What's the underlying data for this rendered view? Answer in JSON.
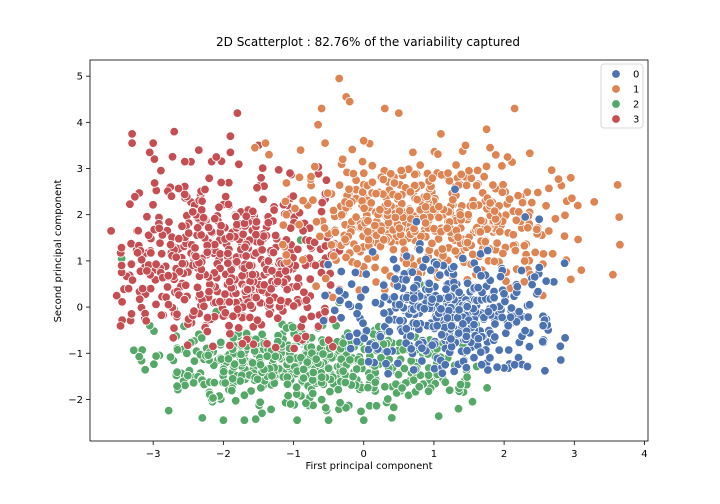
{
  "chart_data": {
    "type": "scatter",
    "title": "2D Scatterplot : 82.76% of the variability captured",
    "xlabel": "First principal component",
    "ylabel": "Second principal component",
    "xlim": [
      -3.9,
      4.05
    ],
    "ylim": [
      -2.9,
      5.35
    ],
    "xticks": [
      -3,
      -2,
      -1,
      0,
      1,
      2,
      3,
      4
    ],
    "yticks": [
      -2,
      -1,
      0,
      1,
      2,
      3,
      4,
      5
    ],
    "grid": false,
    "legend": {
      "position": "top-right"
    },
    "series": [
      {
        "name": "0",
        "color": "#4c72b0",
        "cluster": {
          "cx": 1.25,
          "cy": -0.15,
          "sx": 0.65,
          "sy": 0.6,
          "n": 420,
          "xmin": -0.6,
          "xmax": 2.9,
          "ymin": -1.5,
          "ymax": 2.5
        },
        "points": [
          [
            1.3,
            2.55
          ],
          [
            2.3,
            1.95
          ],
          [
            2.5,
            1.9
          ],
          [
            2.55,
            -0.75
          ],
          [
            2.8,
            -0.85
          ],
          [
            0.75,
            1.85
          ],
          [
            -0.35,
            0.35
          ],
          [
            -0.55,
            0.25
          ],
          [
            1.9,
            -1.3
          ],
          [
            2.15,
            -1.25
          ]
        ]
      },
      {
        "name": "1",
        "color": "#dd8452",
        "cluster": {
          "cx": 0.8,
          "cy": 1.9,
          "sx": 1.0,
          "sy": 0.7,
          "n": 520,
          "xmin": -1.2,
          "xmax": 3.7,
          "ymin": 0.2,
          "ymax": 3.6
        },
        "points": [
          [
            -0.35,
            4.95
          ],
          [
            -0.25,
            4.55
          ],
          [
            -0.2,
            4.45
          ],
          [
            0.3,
            4.3
          ],
          [
            0.5,
            4.2
          ],
          [
            -0.6,
            4.3
          ],
          [
            -0.65,
            3.95
          ],
          [
            -0.9,
            3.4
          ],
          [
            -0.55,
            3.55
          ],
          [
            -0.3,
            3.2
          ],
          [
            2.15,
            4.3
          ],
          [
            1.75,
            3.85
          ],
          [
            1.1,
            3.75
          ],
          [
            1.45,
            3.5
          ],
          [
            1.8,
            3.45
          ],
          [
            2.05,
            3.25
          ],
          [
            -1.4,
            3.55
          ],
          [
            -1.55,
            3.45
          ],
          [
            -1.35,
            3.3
          ],
          [
            3.65,
            1.35
          ],
          [
            3.55,
            0.7
          ],
          [
            3.1,
            0.8
          ],
          [
            2.95,
            0.6
          ],
          [
            2.55,
            0.25
          ],
          [
            0.0,
            3.6
          ],
          [
            0.7,
            3.35
          ],
          [
            1.5,
            2.95
          ],
          [
            1.2,
            2.9
          ],
          [
            3.05,
            2.2
          ],
          [
            2.95,
            2.8
          ]
        ]
      },
      {
        "name": "2",
        "color": "#55a868",
        "cluster": {
          "cx": -0.8,
          "cy": -1.3,
          "sx": 1.1,
          "sy": 0.45,
          "n": 520,
          "xmin": -3.3,
          "xmax": 1.8,
          "ymin": -2.45,
          "ymax": -0.35
        },
        "points": [
          [
            -3.45,
            1.05
          ],
          [
            -3.05,
            -0.4
          ],
          [
            -2.3,
            -2.4
          ],
          [
            -2.0,
            -2.45
          ],
          [
            -1.7,
            -2.45
          ],
          [
            -1.45,
            -2.3
          ],
          [
            -0.95,
            -2.45
          ],
          [
            -0.5,
            -2.45
          ],
          [
            0.0,
            -2.45
          ],
          [
            0.4,
            -2.4
          ],
          [
            1.35,
            -2.2
          ],
          [
            1.55,
            -2.05
          ],
          [
            0.8,
            0.5
          ],
          [
            -0.6,
            0.95
          ],
          [
            -0.9,
            1.45
          ],
          [
            -0.35,
            0.1
          ],
          [
            -2.1,
            -0.1
          ],
          [
            -2.7,
            -0.05
          ]
        ]
      },
      {
        "name": "3",
        "color": "#c44e52",
        "cluster": {
          "cx": -1.85,
          "cy": 1.0,
          "sx": 0.8,
          "sy": 0.95,
          "n": 560,
          "xmin": -3.55,
          "xmax": -0.3,
          "ymin": -0.9,
          "ymax": 3.4
        },
        "points": [
          [
            -3.3,
            3.75
          ],
          [
            -3.3,
            3.55
          ],
          [
            -3.0,
            3.55
          ],
          [
            -2.7,
            3.8
          ],
          [
            -3.05,
            3.35
          ],
          [
            -2.35,
            3.4
          ],
          [
            -1.9,
            3.35
          ],
          [
            -1.8,
            4.2
          ],
          [
            -1.9,
            3.7
          ],
          [
            -1.5,
            3.5
          ],
          [
            -3.6,
            1.65
          ],
          [
            -3.45,
            0.75
          ],
          [
            -3.35,
            0.4
          ],
          [
            -3.15,
            0.4
          ],
          [
            -3.45,
            0.9
          ],
          [
            -3.1,
            -0.3
          ],
          [
            -2.55,
            3.15
          ],
          [
            -2.1,
            3.25
          ],
          [
            -1.05,
            2.9
          ],
          [
            -0.7,
            1.4
          ],
          [
            -0.5,
            0.25
          ],
          [
            -0.55,
            -0.1
          ]
        ]
      }
    ]
  }
}
